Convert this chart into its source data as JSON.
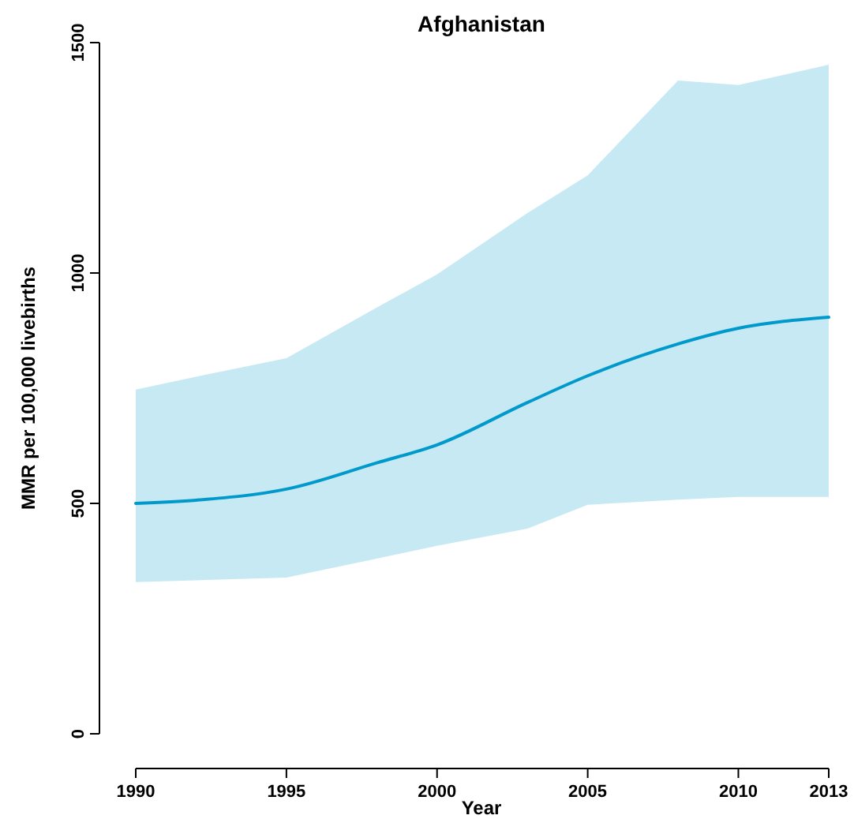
{
  "chart_data": {
    "type": "line",
    "title": "Afghanistan",
    "xlabel": "Year",
    "ylabel": "MMR per 100,000 livebirths",
    "x": [
      1990,
      1992,
      1995,
      1998,
      2000,
      2003,
      2005,
      2008,
      2010,
      2013
    ],
    "series": [
      {
        "color": "#0099cc",
        "values": [
          500,
          507,
          531,
          588,
          627,
          719,
          777,
          846,
          880,
          904
        ],
        "lower": [
          329,
          333,
          339,
          380,
          408,
          445,
          497,
          508,
          514,
          514
        ],
        "upper": [
          747,
          775,
          815,
          925,
          997,
          1130,
          1212,
          1418,
          1408,
          1452
        ]
      }
    ],
    "xlim": [
      1990,
      2013
    ],
    "xticks": [
      1990,
      1995,
      2000,
      2005,
      2010,
      2013
    ],
    "ylim": [
      0,
      1500
    ],
    "yticks": [
      0,
      500,
      1000,
      1500
    ],
    "grid": false,
    "marker": "none",
    "line_style": "solid"
  }
}
